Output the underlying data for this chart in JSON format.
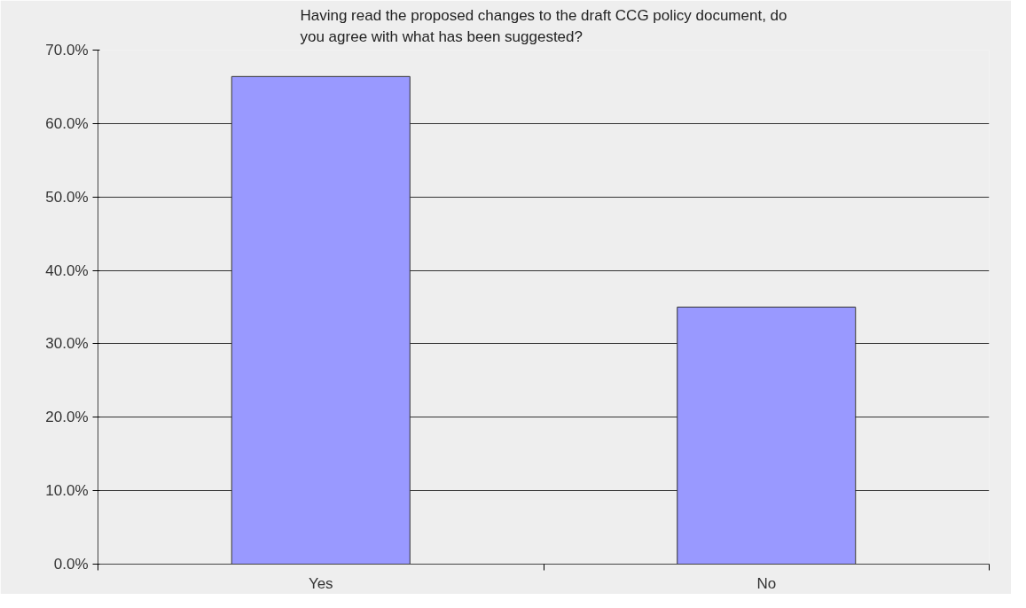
{
  "chart_data": {
    "type": "bar",
    "title": "Having read the proposed changes to the draft CCG policy document, do\nyou agree with what has been suggested?",
    "categories": [
      "Yes",
      "No"
    ],
    "values": [
      66.4,
      35.0
    ],
    "color": "#9999ff",
    "ylim": [
      0,
      70
    ],
    "yticks": [
      {
        "value": 0,
        "label": "0.0%"
      },
      {
        "value": 10,
        "label": "10.0%"
      },
      {
        "value": 20,
        "label": "20.0%"
      },
      {
        "value": 30,
        "label": "30.0%"
      },
      {
        "value": 40,
        "label": "40.0%"
      },
      {
        "value": 50,
        "label": "50.0%"
      },
      {
        "value": 60,
        "label": "60.0%"
      },
      {
        "value": 70,
        "label": "70.0%"
      }
    ],
    "grid": "y"
  }
}
